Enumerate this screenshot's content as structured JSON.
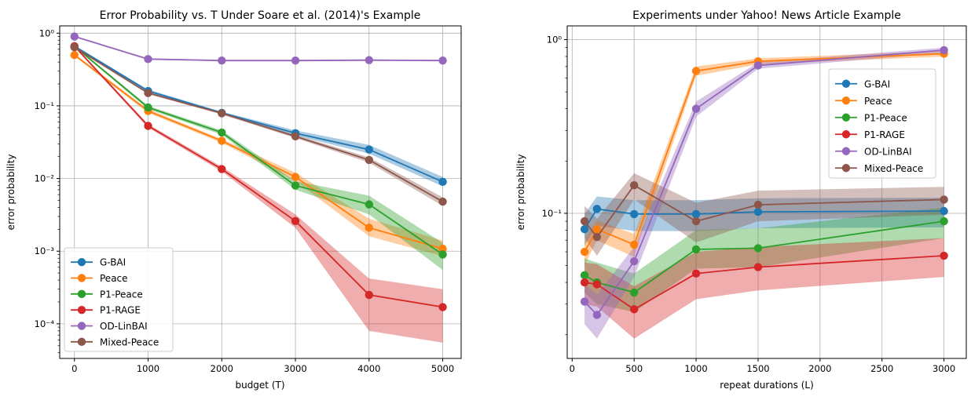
{
  "chart_data": [
    {
      "type": "line",
      "title": "Error Probability vs. T Under Soare et al. (2014)'s Example",
      "xlabel": "budget (T)",
      "ylabel": "error probability",
      "yscale": "log",
      "xlim": [
        -200,
        5250
      ],
      "ylim": [
        3.34e-05,
        1.26
      ],
      "x_ticks": [
        0,
        1000,
        2000,
        3000,
        4000,
        5000
      ],
      "x_tick_labels": [
        "0",
        "1000",
        "2000",
        "3000",
        "4000",
        "5000"
      ],
      "y_ticks": [
        0.0001,
        0.001,
        0.01,
        0.1,
        1
      ],
      "y_tick_labels": [
        "10⁻⁴",
        "10⁻³",
        "10⁻²",
        "10⁻¹",
        "10⁰"
      ],
      "grid": true,
      "legend_position": "lower-left",
      "x": [
        0,
        1000,
        2000,
        3000,
        4000,
        5000
      ],
      "series": [
        {
          "name": "G-BAI",
          "color": "#1f77b4",
          "values": [
            0.66,
            0.16,
            0.08,
            0.042,
            0.025,
            0.009
          ],
          "lower": [
            0.64,
            0.155,
            0.077,
            0.039,
            0.022,
            0.0078
          ],
          "upper": [
            0.68,
            0.168,
            0.083,
            0.046,
            0.029,
            0.0105
          ]
        },
        {
          "name": "Peace",
          "color": "#ff7f0e",
          "values": [
            0.5,
            0.085,
            0.033,
            0.0105,
            0.0021,
            0.00108
          ],
          "lower": [
            0.48,
            0.08,
            0.031,
            0.0092,
            0.0016,
            0.00085
          ],
          "upper": [
            0.52,
            0.09,
            0.035,
            0.012,
            0.0028,
            0.0014
          ]
        },
        {
          "name": "P1-Peace",
          "color": "#2ca02c",
          "values": [
            0.66,
            0.095,
            0.043,
            0.008,
            0.0044,
            0.0009
          ],
          "lower": [
            0.64,
            0.09,
            0.04,
            0.007,
            0.0032,
            0.00055
          ],
          "upper": [
            0.68,
            0.1,
            0.046,
            0.0092,
            0.0058,
            0.0013
          ]
        },
        {
          "name": "P1-RAGE",
          "color": "#d62728",
          "values": [
            0.66,
            0.053,
            0.0135,
            0.0026,
            0.00025,
            0.00017
          ],
          "lower": [
            0.64,
            0.05,
            0.0125,
            0.0021,
            8e-05,
            5.5e-05
          ],
          "upper": [
            0.68,
            0.056,
            0.0145,
            0.0032,
            0.00042,
            0.0003
          ]
        },
        {
          "name": "OD-LinBAI",
          "color": "#9467bd",
          "values": [
            0.9,
            0.44,
            0.42,
            0.42,
            0.425,
            0.42
          ],
          "lower": [
            0.88,
            0.43,
            0.41,
            0.41,
            0.415,
            0.41
          ],
          "upper": [
            0.92,
            0.45,
            0.43,
            0.43,
            0.435,
            0.43
          ]
        },
        {
          "name": "Mixed-Peace",
          "color": "#8c564b",
          "values": [
            0.64,
            0.15,
            0.079,
            0.038,
            0.018,
            0.0048
          ],
          "lower": [
            0.62,
            0.145,
            0.076,
            0.036,
            0.0165,
            0.0042
          ],
          "upper": [
            0.66,
            0.155,
            0.082,
            0.04,
            0.0195,
            0.0055
          ]
        }
      ]
    },
    {
      "type": "line",
      "title": "Experiments under Yahoo! News Article Example",
      "xlabel": "repeat durations (L)",
      "ylabel": "error probability",
      "yscale": "log",
      "xlim": [
        -40,
        3180
      ],
      "ylim": [
        0.0146,
        1.2
      ],
      "x_ticks": [
        0,
        500,
        1000,
        1500,
        2000,
        2500,
        3000
      ],
      "x_tick_labels": [
        "0",
        "500",
        "1000",
        "1500",
        "2000",
        "2500",
        "3000"
      ],
      "y_ticks": [
        0.1,
        1
      ],
      "y_tick_labels": [
        "10⁻¹",
        "10⁰"
      ],
      "grid": true,
      "legend_position": "upper-right",
      "x": [
        100,
        200,
        500,
        1000,
        1500,
        3000
      ],
      "series": [
        {
          "name": "G-BAI",
          "color": "#1f77b4",
          "values": [
            0.081,
            0.106,
            0.099,
            0.099,
            0.102,
            0.103
          ],
          "lower": [
            0.065,
            0.085,
            0.079,
            0.079,
            0.082,
            0.083
          ],
          "upper": [
            0.099,
            0.125,
            0.119,
            0.119,
            0.122,
            0.123
          ]
        },
        {
          "name": "Peace",
          "color": "#ff7f0e",
          "values": [
            0.06,
            0.081,
            0.066,
            0.66,
            0.75,
            0.83
          ],
          "lower": [
            0.05,
            0.07,
            0.056,
            0.62,
            0.72,
            0.8
          ],
          "upper": [
            0.07,
            0.091,
            0.076,
            0.7,
            0.78,
            0.86
          ]
        },
        {
          "name": "P1-Peace",
          "color": "#2ca02c",
          "values": [
            0.044,
            0.04,
            0.035,
            0.062,
            0.063,
            0.09
          ],
          "lower": [
            0.035,
            0.03,
            0.027,
            0.048,
            0.049,
            0.072
          ],
          "upper": [
            0.055,
            0.052,
            0.045,
            0.08,
            0.082,
            0.108
          ]
        },
        {
          "name": "P1-RAGE",
          "color": "#d62728",
          "values": [
            0.04,
            0.039,
            0.028,
            0.045,
            0.049,
            0.057
          ],
          "lower": [
            0.03,
            0.029,
            0.019,
            0.032,
            0.036,
            0.043
          ],
          "upper": [
            0.052,
            0.051,
            0.038,
            0.06,
            0.064,
            0.072
          ]
        },
        {
          "name": "OD-LinBAI",
          "color": "#9467bd",
          "values": [
            0.031,
            0.026,
            0.053,
            0.4,
            0.71,
            0.87
          ],
          "lower": [
            0.023,
            0.019,
            0.043,
            0.36,
            0.68,
            0.84
          ],
          "upper": [
            0.039,
            0.034,
            0.064,
            0.44,
            0.74,
            0.9
          ]
        },
        {
          "name": "Mixed-Peace",
          "color": "#8c564b",
          "values": [
            0.09,
            0.073,
            0.145,
            0.09,
            0.112,
            0.12
          ],
          "lower": [
            0.072,
            0.057,
            0.12,
            0.068,
            0.09,
            0.098
          ],
          "upper": [
            0.11,
            0.093,
            0.17,
            0.115,
            0.135,
            0.142
          ]
        }
      ]
    }
  ]
}
